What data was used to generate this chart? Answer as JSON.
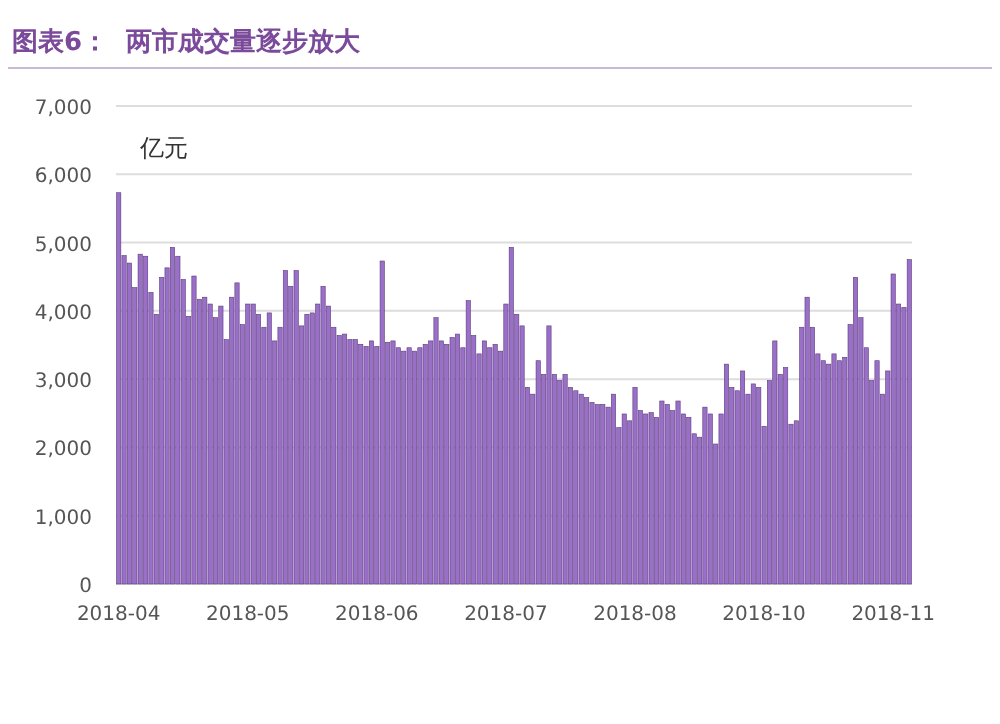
{
  "chart_data": {
    "type": "bar",
    "title": "图表6：  两市成交量逐步放大",
    "ylabel": "亿元",
    "categories": [
      "2018-04",
      null,
      null,
      null,
      null,
      null,
      null,
      null,
      null,
      null,
      null,
      null,
      null,
      null,
      null,
      null,
      null,
      null,
      null,
      null,
      null,
      null,
      null,
      null,
      "2018-05",
      null,
      null,
      null,
      null,
      null,
      null,
      null,
      null,
      null,
      null,
      null,
      null,
      null,
      null,
      null,
      null,
      null,
      null,
      null,
      null,
      null,
      null,
      null,
      "2018-06",
      null,
      null,
      null,
      null,
      null,
      null,
      null,
      null,
      null,
      null,
      null,
      null,
      null,
      null,
      null,
      null,
      null,
      null,
      null,
      null,
      null,
      null,
      null,
      "2018-07",
      null,
      null,
      null,
      null,
      null,
      null,
      null,
      null,
      null,
      null,
      null,
      null,
      null,
      null,
      null,
      null,
      null,
      null,
      null,
      null,
      null,
      null,
      null,
      "2018-08",
      null,
      null,
      null,
      null,
      null,
      null,
      null,
      null,
      null,
      null,
      null,
      null,
      null,
      null,
      null,
      null,
      null,
      null,
      null,
      null,
      null,
      null,
      null,
      "2018-10",
      null,
      null,
      null,
      null,
      null,
      null,
      null,
      null,
      null,
      null,
      null,
      null,
      null,
      null,
      null,
      null,
      null,
      null,
      null,
      null,
      null,
      null,
      null,
      "2018-11",
      null,
      null,
      null
    ],
    "values": [
      5730,
      4810,
      4700,
      4340,
      4830,
      4800,
      4270,
      3950,
      4490,
      4630,
      4930,
      4800,
      4460,
      3920,
      4510,
      4170,
      4200,
      4100,
      3900,
      4070,
      3580,
      4200,
      4410,
      3800,
      4100,
      4100,
      3950,
      3760,
      3970,
      3560,
      3760,
      4590,
      4360,
      4590,
      3780,
      3950,
      3970,
      4100,
      4360,
      4070,
      3760,
      3640,
      3660,
      3580,
      3580,
      3510,
      3480,
      3560,
      3480,
      4730,
      3540,
      3560,
      3460,
      3410,
      3460,
      3410,
      3460,
      3510,
      3560,
      3900,
      3560,
      3510,
      3610,
      3660,
      3460,
      4150,
      3640,
      3370,
      3560,
      3460,
      3510,
      3410,
      4100,
      4930,
      3950,
      3780,
      2880,
      2780,
      3270,
      3070,
      3780,
      3070,
      2980,
      3070,
      2880,
      2830,
      2780,
      2730,
      2660,
      2630,
      2630,
      2590,
      2780,
      2290,
      2490,
      2390,
      2880,
      2540,
      2490,
      2510,
      2440,
      2680,
      2630,
      2540,
      2680,
      2490,
      2440,
      2200,
      2150,
      2590,
      2490,
      2050,
      2490,
      3220,
      2880,
      2830,
      3120,
      2780,
      2930,
      2880,
      2310,
      2980,
      3560,
      3070,
      3170,
      2340,
      2390,
      3760,
      4200,
      3760,
      3370,
      3270,
      3220,
      3370,
      3270,
      3320,
      3800,
      4490,
      3900,
      3460,
      2980,
      3270,
      2780,
      3120,
      4540,
      4100,
      4050,
      4750
    ],
    "color": "#9a6fc8",
    "ylim": [
      0,
      7000
    ],
    "yticks": [
      {
        "value": 0,
        "label": "0"
      },
      {
        "value": 1000,
        "label": "1,000"
      },
      {
        "value": 2000,
        "label": "2,000"
      },
      {
        "value": 3000,
        "label": "3,000"
      },
      {
        "value": 4000,
        "label": "4,000"
      },
      {
        "value": 5000,
        "label": "5,000"
      },
      {
        "value": 6000,
        "label": "6,000"
      },
      {
        "value": 7000,
        "label": "7,000"
      }
    ],
    "grid": "y"
  }
}
